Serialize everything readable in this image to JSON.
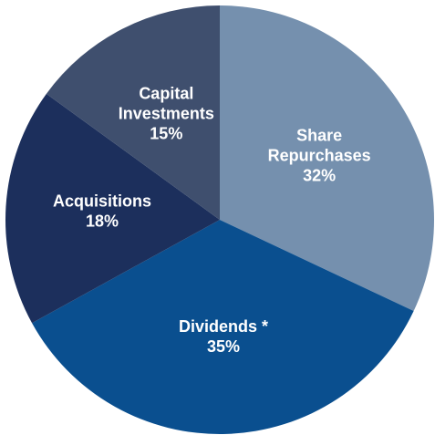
{
  "chart_data": {
    "type": "pie",
    "categories": [
      [
        "Share",
        "Repurchases"
      ],
      [
        "Dividends *"
      ],
      [
        "Acquisitions"
      ],
      [
        "Capital",
        "Investments"
      ]
    ],
    "values": [
      32,
      35,
      18,
      15
    ],
    "value_labels": [
      "32%",
      "35%",
      "18%",
      "15%"
    ],
    "colors": [
      "#7590ae",
      "#0a4f8f",
      "#1c2f5c",
      "#3f4f6e"
    ]
  }
}
